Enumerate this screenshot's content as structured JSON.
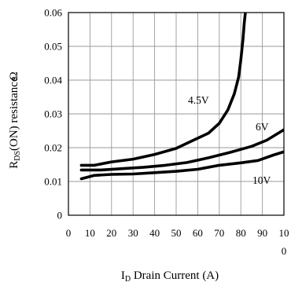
{
  "chart_data": {
    "type": "line",
    "title": "",
    "xlabel": "I D Drain Current (A)",
    "xlabel_parts": {
      "symbol": "I",
      "subscript": "D",
      "rest": " Drain Current (A)"
    },
    "ylabel": "R DS(ON) resistance",
    "ylabel_parts": {
      "symbol": "R",
      "subscript": "DS",
      "rest": "(ON) resistance",
      "unit": "Ω"
    },
    "xlim": [
      0,
      100
    ],
    "ylim": [
      0,
      0.06
    ],
    "grid": true,
    "x_ticks": [
      "0",
      "10",
      "20",
      "30",
      "40",
      "50",
      "60",
      "70",
      "80",
      "90",
      "10"
    ],
    "x_tick_overflow": "0",
    "y_ticks": [
      "0",
      "0.01",
      "0.02",
      "0.03",
      "0.04",
      "0.05",
      "0.06"
    ],
    "series": [
      {
        "name": "4.5V",
        "x": [
          6,
          12,
          20,
          30,
          40,
          50,
          58,
          65,
          70,
          74,
          77,
          79,
          80,
          81,
          81.6,
          82.1
        ],
        "y": [
          0.0148,
          0.0148,
          0.0158,
          0.0166,
          0.018,
          0.0198,
          0.0222,
          0.0243,
          0.0272,
          0.0312,
          0.036,
          0.041,
          0.046,
          0.052,
          0.057,
          0.06
        ]
      },
      {
        "name": "6V",
        "x": [
          6,
          15,
          25,
          35,
          45,
          55,
          65,
          75,
          85,
          92,
          100
        ],
        "y": [
          0.0134,
          0.0134,
          0.0138,
          0.0142,
          0.0148,
          0.0156,
          0.017,
          0.0186,
          0.0204,
          0.0222,
          0.0253
        ]
      },
      {
        "name": "10V",
        "x": [
          6,
          12,
          20,
          30,
          40,
          50,
          60,
          70,
          80,
          88,
          95,
          100
        ],
        "y": [
          0.0108,
          0.0118,
          0.0121,
          0.0122,
          0.0126,
          0.013,
          0.0136,
          0.0148,
          0.0155,
          0.0162,
          0.0178,
          0.0188
        ]
      }
    ],
    "annotations": [
      {
        "text": "4.5V",
        "series": "4.5V"
      },
      {
        "text": "6V",
        "series": "6V"
      },
      {
        "text": "10V",
        "series": "10V"
      }
    ]
  }
}
